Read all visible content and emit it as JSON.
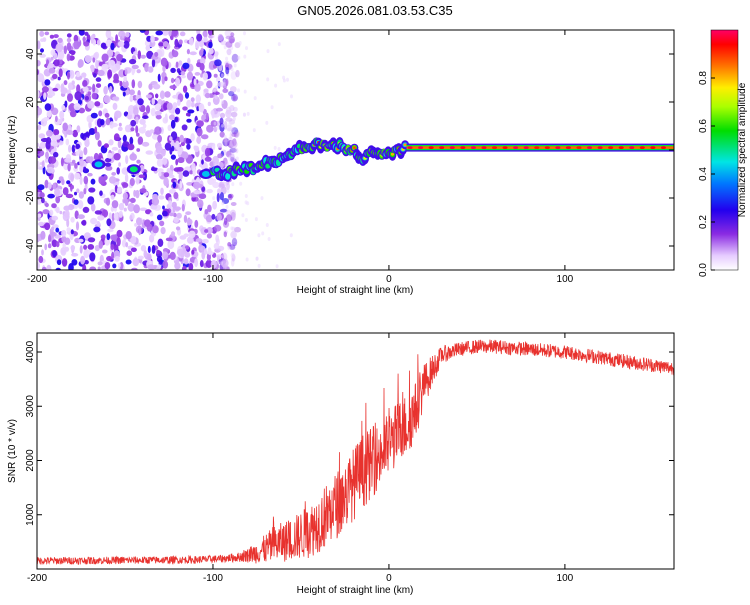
{
  "title": "GN05.2026.081.03.53.C35",
  "colors": {
    "trace": "#e8322e",
    "axis": "#000000",
    "bg": "#ffffff"
  },
  "chart_data": [
    {
      "type": "heatmap",
      "xlabel": "Height of straight line (km)",
      "ylabel": "Frequency (Hz)",
      "xlim": [
        -200,
        162
      ],
      "ylim": [
        -50,
        50
      ],
      "xticks": [
        -200,
        -100,
        0,
        100
      ],
      "yticks": [
        -40,
        -20,
        0,
        20,
        40
      ],
      "colorbar": {
        "label": "Normalized spectral amplitude",
        "range": [
          0,
          1
        ],
        "ticks": [
          "0.0",
          "0.2",
          "0.4",
          "0.6",
          "0.8"
        ],
        "tick_values": [
          0.0,
          0.2,
          0.4,
          0.6,
          0.8
        ]
      },
      "noise_region_km": [
        -200,
        -86
      ],
      "signal_track": [
        {
          "x": -165,
          "f": -6
        },
        {
          "x": -145,
          "f": -8
        },
        {
          "x": -105,
          "f": -9
        },
        {
          "x": -95,
          "f": -10
        },
        {
          "x": -88,
          "f": -9
        },
        {
          "x": -80,
          "f": -8
        },
        {
          "x": -72,
          "f": -6
        },
        {
          "x": -65,
          "f": -5
        },
        {
          "x": -60,
          "f": -3
        },
        {
          "x": -55,
          "f": -1
        },
        {
          "x": -50,
          "f": 1
        },
        {
          "x": -45,
          "f": 2
        },
        {
          "x": -40,
          "f": 2
        },
        {
          "x": -35,
          "f": 2
        },
        {
          "x": -30,
          "f": 2
        },
        {
          "x": -25,
          "f": 1
        },
        {
          "x": -20,
          "f": 0
        },
        {
          "x": -15,
          "f": -3
        },
        {
          "x": -10,
          "f": -1
        },
        {
          "x": -5,
          "f": -2
        },
        {
          "x": 0,
          "f": -1
        },
        {
          "x": 5,
          "f": 0
        },
        {
          "x": 10,
          "f": 1
        },
        {
          "x": 50,
          "f": 1
        },
        {
          "x": 100,
          "f": 1
        },
        {
          "x": 162,
          "f": 1
        }
      ]
    },
    {
      "type": "line",
      "xlabel": "Height of straight line (km)",
      "ylabel": "SNR (10 * v/v)",
      "xlim": [
        -200,
        162
      ],
      "ylim": [
        0,
        4350
      ],
      "xticks": [
        -200,
        -100,
        0,
        100
      ],
      "yticks": [
        1000,
        2000,
        3000,
        4000
      ],
      "series": [
        {
          "name": "SNR",
          "envelope_x": [
            -200,
            -150,
            -110,
            -95,
            -85,
            -75,
            -65,
            -55,
            -45,
            -35,
            -25,
            -15,
            -5,
            0,
            5,
            10,
            15,
            20,
            30,
            40,
            50,
            60,
            80,
            100,
            120,
            140,
            162
          ],
          "envelope_mean": [
            150,
            160,
            170,
            190,
            220,
            300,
            450,
            550,
            700,
            1000,
            1350,
            1800,
            2100,
            2300,
            2500,
            2650,
            2900,
            3400,
            3950,
            4050,
            4100,
            4100,
            4050,
            4000,
            3900,
            3800,
            3700
          ],
          "envelope_noise": [
            70,
            70,
            70,
            70,
            90,
            200,
            350,
            400,
            500,
            600,
            650,
            700,
            600,
            600,
            600,
            600,
            550,
            400,
            160,
            130,
            130,
            130,
            130,
            130,
            130,
            130,
            130
          ]
        }
      ]
    }
  ]
}
